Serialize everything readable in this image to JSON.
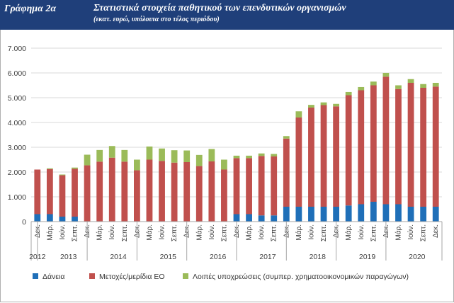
{
  "header": {
    "label": "Γράφημα 2α",
    "title": "Στατιστικά στοιχεία παθητικού των επενδυτικών οργανισμών",
    "subtitle": "(εκατ. ευρώ, υπόλοιπα στο τέλος περιόδου)"
  },
  "chart_data": {
    "type": "bar",
    "stacked": true,
    "grid": true,
    "legend_position": "bottom",
    "ylim": [
      0,
      7000
    ],
    "yticks": [
      "0",
      "1.000",
      "2.000",
      "3.000",
      "4.000",
      "5.000",
      "6.000",
      "7.000"
    ],
    "categories": [
      "Δεκ.",
      "Μάρ.",
      "Ιούν.",
      "Σεπτ.",
      "Δεκ.",
      "Μάρ.",
      "Ιούν.",
      "Σεπτ.",
      "Δεκ.",
      "Μάρ.",
      "Ιούν.",
      "Σεπτ.",
      "Δεκ.",
      "Μάρ.",
      "Ιούν.",
      "Σεπτ.",
      "Δεκ.",
      "Μάρ.",
      "Ιούν.",
      "Σεπτ.",
      "Δεκ.",
      "Μάρ.",
      "Ιούν.",
      "Σεπτ.",
      "Δεκ.",
      "Μάρ.",
      "Ιούν.",
      "Σεπτ.",
      "Δεκ.",
      "Μάρ.",
      "Ιούν.",
      "Σεπτ.",
      "Δεκ."
    ],
    "year_labels": [
      {
        "label": "2012",
        "index": 0
      },
      {
        "label": "2013",
        "index": 2.5
      },
      {
        "label": "2014",
        "index": 6.5
      },
      {
        "label": "2015",
        "index": 10.5
      },
      {
        "label": "2016",
        "index": 14.5
      },
      {
        "label": "2017",
        "index": 18.5
      },
      {
        "label": "2018",
        "index": 22.5
      },
      {
        "label": "2019",
        "index": 26.5
      },
      {
        "label": "2020",
        "index": 30.5
      }
    ],
    "year_separators": [
      0.5,
      4.5,
      8.5,
      12.5,
      16.5,
      20.5,
      24.5,
      28.5
    ],
    "series": [
      {
        "name": "Δάνεια",
        "color": "#1f6fb8",
        "values": [
          300,
          300,
          200,
          200,
          0,
          0,
          0,
          0,
          0,
          0,
          0,
          0,
          0,
          0,
          0,
          0,
          300,
          300,
          250,
          250,
          600,
          600,
          600,
          600,
          600,
          650,
          700,
          800,
          700,
          700,
          600,
          600,
          600
        ]
      },
      {
        "name": "Μετοχές/μερίδια ΕΟ",
        "color": "#c0504d",
        "values": [
          1800,
          1820,
          1670,
          1930,
          2270,
          2420,
          2580,
          2420,
          2070,
          2500,
          2450,
          2380,
          2400,
          2240,
          2430,
          2100,
          2260,
          2260,
          2400,
          2380,
          2750,
          3600,
          4000,
          4100,
          4050,
          4450,
          4600,
          4700,
          5150,
          4650,
          5000,
          4800,
          4850
        ]
      },
      {
        "name": "Λοιπές υποχρεώσεις (συμπερ. χρηματοοικονομικών παραγώγων)",
        "color": "#9bbb59",
        "values": [
          0,
          30,
          30,
          50,
          430,
          470,
          470,
          470,
          430,
          530,
          500,
          500,
          470,
          450,
          500,
          400,
          100,
          100,
          100,
          100,
          100,
          250,
          110,
          110,
          100,
          130,
          130,
          150,
          150,
          150,
          150,
          150,
          150
        ]
      }
    ]
  }
}
